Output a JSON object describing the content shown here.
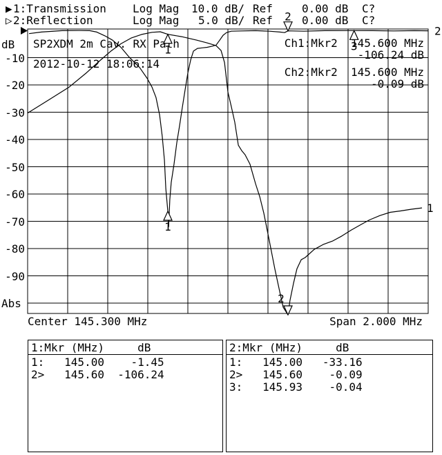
{
  "colors": {
    "foreground": "#000000",
    "background": "#ffffff"
  },
  "header": {
    "line1": {
      "arrow": "▶",
      "label": "1:Transmission",
      "format": "Log Mag",
      "scale": "10.0 dB/",
      "ref_label": "Ref",
      "ref_value": "0.00 dB",
      "status": "C?"
    },
    "line2": {
      "arrow": "▷",
      "label": "2:Reflection",
      "format": "Log Mag",
      "scale": "5.0 dB/",
      "ref_label": "Ref",
      "ref_value": "0.00 dB",
      "status": "C?"
    }
  },
  "graph": {
    "title": "SP2XDM 2m Cav. RX Path",
    "timestamp": "2012-10-12 18:06:14",
    "y_axis_top_label": "dB",
    "y_axis_bottom_label": "Abs",
    "x_axis": {
      "center": "Center 145.300 MHz",
      "span": "Span 2.000 MHz"
    },
    "readouts": [
      {
        "source": "Ch1:Mkr2",
        "freq": "145.600 MHz",
        "value": "-106.24 dB"
      },
      {
        "source": "Ch2:Mkr2",
        "freq": "145.600 MHz",
        "value": "-0.09 dB"
      }
    ]
  },
  "chart_data": {
    "type": "line",
    "title": "SP2XDM 2m Cav. RX Path",
    "x": {
      "min_mhz": 144.3,
      "max_mhz": 146.3,
      "center_mhz": 145.3,
      "span_mhz": 2.0,
      "divisions": 10
    },
    "y": {
      "divisions": 10,
      "ref_db": 0,
      "tick_labels": [
        -10,
        -20,
        -30,
        -40,
        -50,
        -60,
        -70,
        -80,
        -90
      ]
    },
    "series": [
      {
        "name": "Transmission",
        "channel": 1,
        "db_per_div": 10,
        "end_label": "1",
        "points_mhz_db": [
          [
            144.3,
            -30.3
          ],
          [
            144.403,
            -25.6
          ],
          [
            144.507,
            -20.8
          ],
          [
            144.593,
            -15.6
          ],
          [
            144.662,
            -11.0
          ],
          [
            144.714,
            -7.7
          ],
          [
            144.766,
            -4.9
          ],
          [
            144.817,
            -2.8
          ],
          [
            144.869,
            -1.5
          ],
          [
            144.921,
            -0.7
          ],
          [
            144.962,
            -0.5
          ],
          [
            145.0,
            -1.45
          ],
          [
            145.069,
            -2.3
          ],
          [
            145.145,
            -3.6
          ],
          [
            145.197,
            -4.6
          ],
          [
            145.241,
            -5.6
          ],
          [
            145.266,
            -7.4
          ],
          [
            145.283,
            -11.8
          ],
          [
            145.3,
            -22.6
          ],
          [
            145.317,
            -27.9
          ],
          [
            145.334,
            -33.6
          ],
          [
            145.352,
            -42.1
          ],
          [
            145.369,
            -44.1
          ],
          [
            145.386,
            -45.6
          ],
          [
            145.41,
            -49.0
          ],
          [
            145.438,
            -56.2
          ],
          [
            145.459,
            -61.0
          ],
          [
            145.479,
            -66.9
          ],
          [
            145.507,
            -77.2
          ],
          [
            145.534,
            -87.4
          ],
          [
            145.559,
            -95.9
          ],
          [
            145.576,
            -101.5
          ],
          [
            145.6,
            -106.24
          ],
          [
            145.61,
            -99.0
          ],
          [
            145.628,
            -92.6
          ],
          [
            145.645,
            -87.4
          ],
          [
            145.666,
            -84.1
          ],
          [
            145.686,
            -83.3
          ],
          [
            145.731,
            -80.3
          ],
          [
            145.776,
            -78.5
          ],
          [
            145.824,
            -77.2
          ],
          [
            145.869,
            -75.4
          ],
          [
            145.914,
            -73.3
          ],
          [
            145.962,
            -71.3
          ],
          [
            146.007,
            -69.5
          ],
          [
            146.059,
            -67.9
          ],
          [
            146.11,
            -66.7
          ],
          [
            146.162,
            -66.2
          ],
          [
            146.214,
            -65.6
          ],
          [
            146.269,
            -65.1
          ]
        ]
      },
      {
        "name": "Reflection",
        "channel": 2,
        "db_per_div": 5,
        "end_label": "2",
        "points_mhz_db": [
          [
            144.307,
            -0.6
          ],
          [
            144.369,
            -0.3
          ],
          [
            144.472,
            -0.05
          ],
          [
            144.559,
            -0.02
          ],
          [
            144.61,
            -0.05
          ],
          [
            144.645,
            -0.3
          ],
          [
            144.686,
            -1.0
          ],
          [
            144.724,
            -1.8
          ],
          [
            144.766,
            -3.1
          ],
          [
            144.807,
            -4.9
          ],
          [
            144.859,
            -6.8
          ],
          [
            144.897,
            -8.8
          ],
          [
            144.921,
            -10.4
          ],
          [
            144.941,
            -12.3
          ],
          [
            144.959,
            -15.5
          ],
          [
            144.972,
            -19.4
          ],
          [
            144.983,
            -23.8
          ],
          [
            144.99,
            -29.0
          ],
          [
            145.0,
            -33.16
          ],
          [
            145.004,
            -36.0
          ],
          [
            145.01,
            -31.0
          ],
          [
            145.017,
            -27.9
          ],
          [
            145.031,
            -24.5
          ],
          [
            145.045,
            -20.6
          ],
          [
            145.059,
            -17.4
          ],
          [
            145.072,
            -14.2
          ],
          [
            145.086,
            -11.0
          ],
          [
            145.1,
            -7.8
          ],
          [
            145.114,
            -5.4
          ],
          [
            145.128,
            -3.8
          ],
          [
            145.148,
            -3.3
          ],
          [
            145.172,
            -3.2
          ],
          [
            145.197,
            -3.1
          ],
          [
            145.221,
            -2.9
          ],
          [
            145.241,
            -2.7
          ],
          [
            145.259,
            -1.8
          ],
          [
            145.276,
            -0.9
          ],
          [
            145.293,
            -0.4
          ],
          [
            145.317,
            -0.15
          ],
          [
            145.369,
            -0.1
          ],
          [
            145.438,
            -0.05
          ],
          [
            145.507,
            -0.15
          ],
          [
            145.559,
            -0.3
          ],
          [
            145.583,
            -0.4
          ],
          [
            145.6,
            -0.09
          ],
          [
            145.679,
            -0.15
          ],
          [
            145.783,
            -0.05
          ],
          [
            145.93,
            -0.04
          ],
          [
            146.024,
            -0.05
          ],
          [
            146.128,
            -0.1
          ],
          [
            146.231,
            -0.05
          ],
          [
            146.3,
            -0.08
          ]
        ]
      }
    ],
    "markers": [
      {
        "channel": 1,
        "number": "1",
        "mhz": 145.0,
        "db": -1.45,
        "symbol": "up",
        "label_side": "below"
      },
      {
        "channel": 1,
        "number": "2",
        "mhz": 145.6,
        "db": -106.24,
        "symbol": "down",
        "label_side": "above-left"
      },
      {
        "channel": 2,
        "number": "1",
        "mhz": 145.0,
        "db": -33.16,
        "symbol": "up",
        "label_side": "below"
      },
      {
        "channel": 2,
        "number": "2",
        "mhz": 145.6,
        "db": -0.09,
        "symbol": "down",
        "label_side": "above"
      },
      {
        "channel": 2,
        "number": "3",
        "mhz": 145.93,
        "db": -0.04,
        "symbol": "up",
        "label_side": "below"
      }
    ],
    "legend_position": "none",
    "grid": true
  },
  "marker_tables": [
    {
      "title": "1:Mkr (MHz)",
      "unit": "dB",
      "rows": [
        {
          "num": "1:",
          "freq": "145.00",
          "db": "-1.45"
        },
        {
          "num": "2>",
          "freq": "145.60",
          "db": "-106.24"
        }
      ]
    },
    {
      "title": "2:Mkr (MHz)",
      "unit": "dB",
      "rows": [
        {
          "num": "1:",
          "freq": "145.00",
          "db": "-33.16"
        },
        {
          "num": "2>",
          "freq": "145.60",
          "db": "-0.09"
        },
        {
          "num": "3:",
          "freq": "145.93",
          "db": "-0.04"
        }
      ]
    }
  ]
}
